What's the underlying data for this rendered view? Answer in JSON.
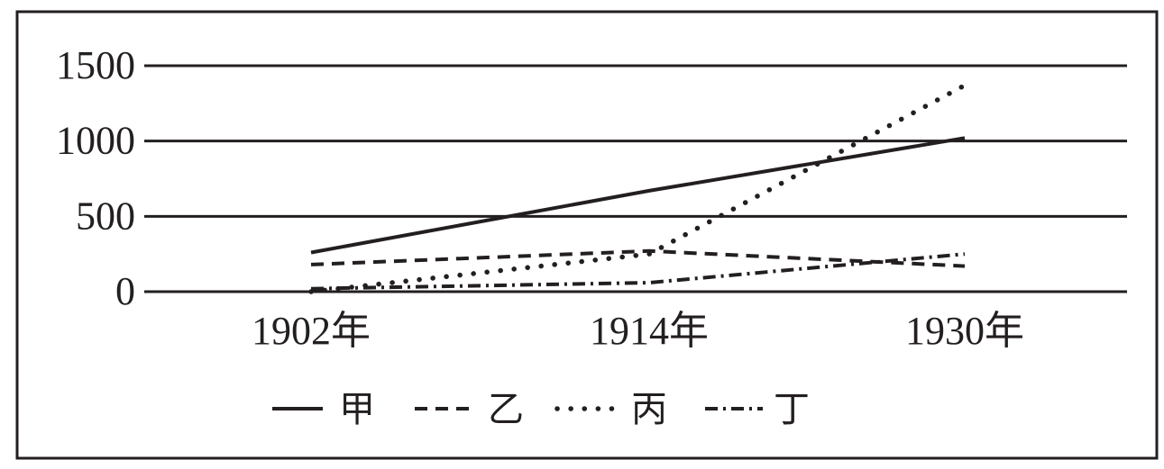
{
  "chart_data": {
    "type": "line",
    "title": "",
    "xlabel": "",
    "ylabel": "",
    "categories": [
      "1902年",
      "1914年",
      "1930年"
    ],
    "yticks": [
      "0",
      "500",
      "1000",
      "1500"
    ],
    "ylim": [
      0,
      1500
    ],
    "grid": "horizontal",
    "legend_position": "bottom",
    "series": [
      {
        "name": "甲",
        "style": "solid",
        "values": [
          260,
          670,
          1020
        ]
      },
      {
        "name": "乙",
        "style": "dashed",
        "values": [
          180,
          270,
          170
        ]
      },
      {
        "name": "丙",
        "style": "dotted",
        "values": [
          0,
          250,
          1370
        ]
      },
      {
        "name": "丁",
        "style": "dash-dot",
        "values": [
          20,
          60,
          250
        ]
      }
    ]
  },
  "colors": {
    "ink": "#231f20",
    "background": "#ffffff"
  }
}
